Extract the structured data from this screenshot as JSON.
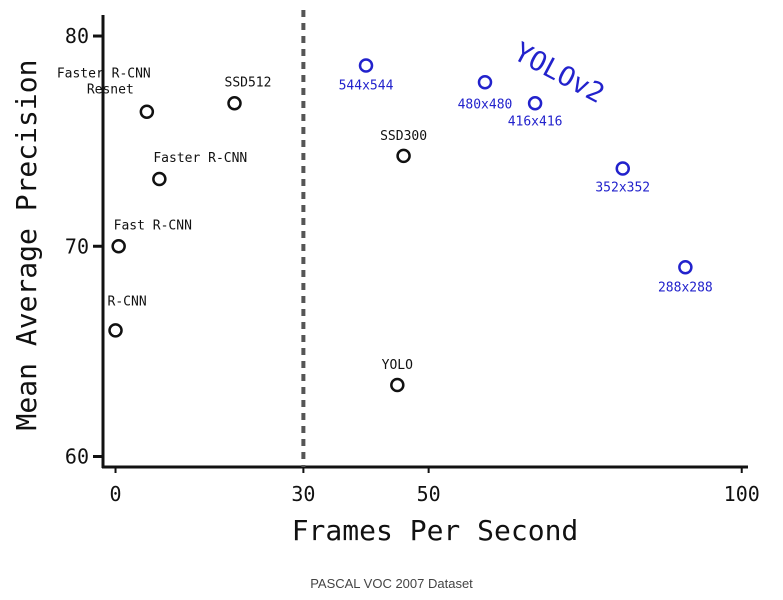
{
  "chart_data": {
    "type": "scatter",
    "title": "",
    "xlabel": "Frames Per Second",
    "ylabel": "Mean Average Precision",
    "xlim": [
      -2,
      101
    ],
    "ylim": [
      59.5,
      81
    ],
    "xticks": [
      {
        "value": 0,
        "label": "0"
      },
      {
        "value": 30,
        "label": "30"
      },
      {
        "value": 50,
        "label": "50"
      },
      {
        "value": 100,
        "label": "100"
      }
    ],
    "yticks": [
      {
        "value": 60,
        "label": "60"
      },
      {
        "value": 70,
        "label": "70"
      },
      {
        "value": 80,
        "label": "80"
      }
    ],
    "grid": false,
    "reference_line": {
      "x": 30,
      "style": "dashed"
    },
    "annotation": "YOLOv2",
    "colors": {
      "baseline": "#111111",
      "yolov2": "#2222cc"
    },
    "series": [
      {
        "points": [
          {
            "label": "R-CNN",
            "x": 0,
            "y": 66.0
          },
          {
            "label": "Fast R-CNN",
            "x": 0.5,
            "y": 70.0
          },
          {
            "label": "Faster R-CNN",
            "x": 7,
            "y": 73.2
          },
          {
            "label": "Faster R-CNN\nResnet",
            "x": 5,
            "y": 76.4
          },
          {
            "label": "SSD512",
            "x": 19,
            "y": 76.8
          },
          {
            "label": "SSD300",
            "x": 46,
            "y": 74.3
          },
          {
            "label": "YOLO",
            "x": 45,
            "y": 63.4
          }
        ]
      },
      {
        "points": [
          {
            "label": "544x544",
            "x": 40,
            "y": 78.6
          },
          {
            "label": "480x480",
            "x": 59,
            "y": 77.8
          },
          {
            "label": "416x416",
            "x": 67,
            "y": 76.8
          },
          {
            "label": "352x352",
            "x": 81,
            "y": 73.7
          },
          {
            "label": "288x288",
            "x": 91,
            "y": 69.0
          }
        ]
      }
    ]
  },
  "caption": "PASCAL VOC 2007 Dataset"
}
